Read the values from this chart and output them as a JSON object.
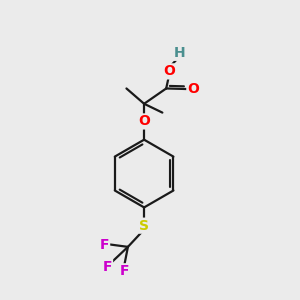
{
  "background_color": "#ebebeb",
  "bond_color": "#1a1a1a",
  "atom_colors": {
    "O": "#ff0000",
    "H": "#4a8f8f",
    "S": "#cccc00",
    "F": "#cc00cc",
    "C": "#1a1a1a"
  },
  "figsize": [
    3.0,
    3.0
  ],
  "dpi": 100,
  "bond_lw": 1.6,
  "double_sep": 0.055
}
